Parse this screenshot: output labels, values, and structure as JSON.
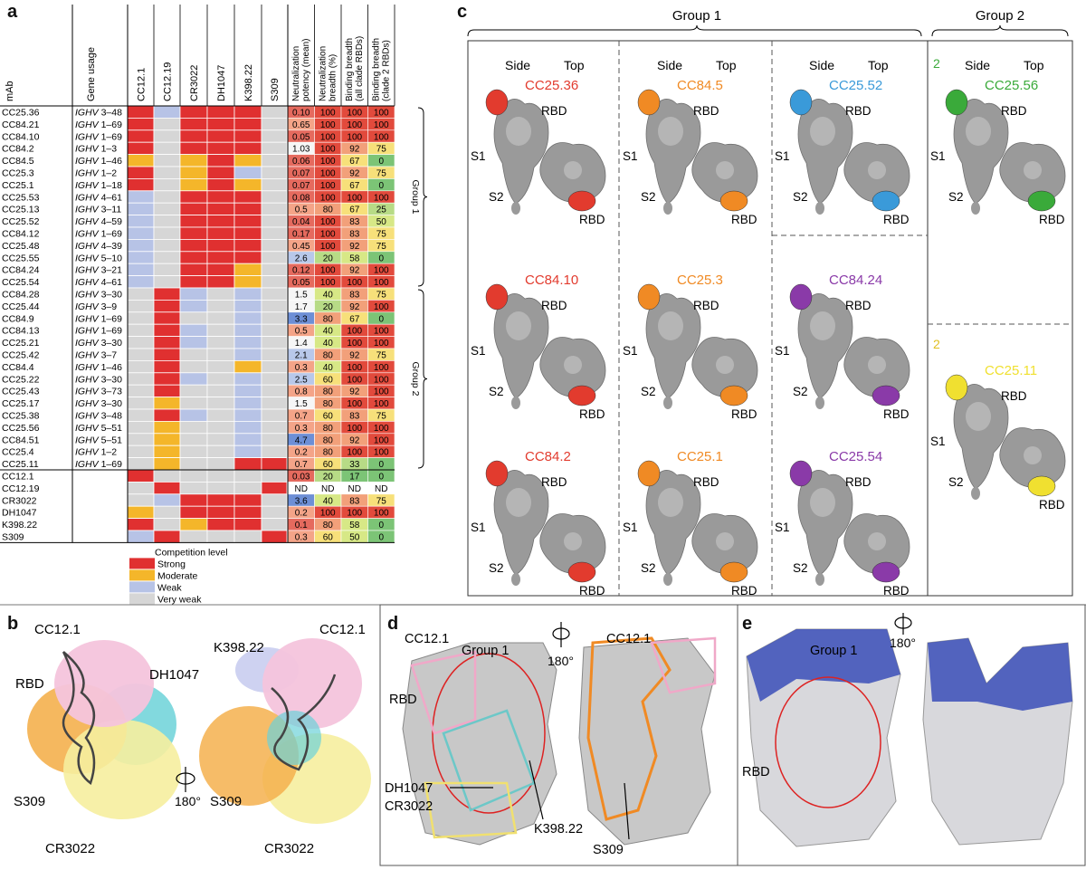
{
  "panels": {
    "a": "a",
    "b": "b",
    "c": "c",
    "d": "d",
    "e": "e"
  },
  "table": {
    "mab_header": "mAb",
    "gene_header": "Gene usage",
    "columns": [
      "CC12.1",
      "CC12.19",
      "CR3022",
      "DH1047",
      "K398.22",
      "S309"
    ],
    "value_headers": [
      "Neutralization potency (mean)",
      "Neutralization breadth (%)",
      "Binding breadth (all clade RBDs)",
      "Binding breadth (clade 2 RBDs)"
    ],
    "group1_label": "Group 1",
    "group2_label": "Group 2",
    "rows": [
      {
        "mab": "CC25.36",
        "gene_i": "IGHV",
        "gene_n": " 3–48",
        "comp": [
          "s",
          "w",
          "s",
          "s",
          "s",
          "v"
        ],
        "vals": [
          "0.10",
          "100",
          "100",
          "100"
        ]
      },
      {
        "mab": "CC84.21",
        "gene_i": "IGHV",
        "gene_n": " 1–69",
        "comp": [
          "s",
          "v",
          "s",
          "s",
          "s",
          "v"
        ],
        "vals": [
          "0.65",
          "100",
          "100",
          "100"
        ]
      },
      {
        "mab": "CC84.10",
        "gene_i": "IGHV",
        "gene_n": " 1–69",
        "comp": [
          "s",
          "v",
          "s",
          "s",
          "s",
          "v"
        ],
        "vals": [
          "0.05",
          "100",
          "100",
          "100"
        ]
      },
      {
        "mab": "CC84.2",
        "gene_i": "IGHV",
        "gene_n": " 1–3",
        "comp": [
          "s",
          "v",
          "s",
          "s",
          "s",
          "v"
        ],
        "vals": [
          "1.03",
          "100",
          "92",
          "75"
        ]
      },
      {
        "mab": "CC84.5",
        "gene_i": "IGHV",
        "gene_n": " 1–46",
        "comp": [
          "m",
          "v",
          "m",
          "s",
          "m",
          "v"
        ],
        "vals": [
          "0.06",
          "100",
          "67",
          "0"
        ]
      },
      {
        "mab": "CC25.3",
        "gene_i": "IGHV",
        "gene_n": " 1–2",
        "comp": [
          "s",
          "v",
          "m",
          "s",
          "w",
          "v"
        ],
        "vals": [
          "0.07",
          "100",
          "92",
          "75"
        ]
      },
      {
        "mab": "CC25.1",
        "gene_i": "IGHV",
        "gene_n": " 1–18",
        "comp": [
          "s",
          "v",
          "m",
          "s",
          "m",
          "v"
        ],
        "vals": [
          "0.07",
          "100",
          "67",
          "0"
        ]
      },
      {
        "mab": "CC25.53",
        "gene_i": "IGHV",
        "gene_n": " 4–61",
        "comp": [
          "w",
          "v",
          "s",
          "s",
          "s",
          "v"
        ],
        "vals": [
          "0.08",
          "100",
          "100",
          "100"
        ]
      },
      {
        "mab": "CC25.13",
        "gene_i": "IGHV",
        "gene_n": " 3–11",
        "comp": [
          "w",
          "v",
          "s",
          "s",
          "s",
          "v"
        ],
        "vals": [
          "0.5",
          "80",
          "67",
          "25"
        ]
      },
      {
        "mab": "CC25.52",
        "gene_i": "IGHV",
        "gene_n": " 4–59",
        "comp": [
          "w",
          "v",
          "s",
          "s",
          "s",
          "v"
        ],
        "vals": [
          "0.04",
          "100",
          "83",
          "50"
        ]
      },
      {
        "mab": "CC84.12",
        "gene_i": "IGHV",
        "gene_n": " 1–69",
        "comp": [
          "w",
          "v",
          "s",
          "s",
          "s",
          "v"
        ],
        "vals": [
          "0.17",
          "100",
          "83",
          "75"
        ]
      },
      {
        "mab": "CC25.48",
        "gene_i": "IGHV",
        "gene_n": " 4–39",
        "comp": [
          "w",
          "v",
          "s",
          "s",
          "s",
          "v"
        ],
        "vals": [
          "0.45",
          "100",
          "92",
          "75"
        ]
      },
      {
        "mab": "CC25.55",
        "gene_i": "IGHV",
        "gene_n": " 5–10",
        "comp": [
          "w",
          "v",
          "s",
          "s",
          "s",
          "v"
        ],
        "vals": [
          "2.6",
          "20",
          "58",
          "0"
        ]
      },
      {
        "mab": "CC84.24",
        "gene_i": "IGHV",
        "gene_n": " 3–21",
        "comp": [
          "w",
          "v",
          "s",
          "s",
          "m",
          "v"
        ],
        "vals": [
          "0.12",
          "100",
          "92",
          "100"
        ]
      },
      {
        "mab": "CC25.54",
        "gene_i": "IGHV",
        "gene_n": " 4–61",
        "comp": [
          "w",
          "v",
          "s",
          "s",
          "m",
          "v"
        ],
        "vals": [
          "0.05",
          "100",
          "100",
          "100"
        ]
      },
      {
        "mab": "CC84.28",
        "gene_i": "IGHV",
        "gene_n": " 3–30",
        "comp": [
          "v",
          "s",
          "w",
          "v",
          "w",
          "v"
        ],
        "vals": [
          "1.5",
          "40",
          "83",
          "75"
        ]
      },
      {
        "mab": "CC25.44",
        "gene_i": "IGHV",
        "gene_n": " 3–9",
        "comp": [
          "v",
          "s",
          "w",
          "v",
          "w",
          "v"
        ],
        "vals": [
          "1.7",
          "20",
          "92",
          "100"
        ]
      },
      {
        "mab": "CC84.9",
        "gene_i": "IGHV",
        "gene_n": " 1–69",
        "comp": [
          "v",
          "s",
          "v",
          "v",
          "w",
          "v"
        ],
        "vals": [
          "3.3",
          "80",
          "67",
          "0"
        ]
      },
      {
        "mab": "CC84.13",
        "gene_i": "IGHV",
        "gene_n": " 1–69",
        "comp": [
          "v",
          "s",
          "w",
          "v",
          "w",
          "v"
        ],
        "vals": [
          "0.5",
          "40",
          "100",
          "100"
        ]
      },
      {
        "mab": "CC25.21",
        "gene_i": "IGHV",
        "gene_n": " 3–30",
        "comp": [
          "v",
          "s",
          "w",
          "v",
          "w",
          "v"
        ],
        "vals": [
          "1.4",
          "40",
          "100",
          "100"
        ]
      },
      {
        "mab": "CC25.42",
        "gene_i": "IGHV",
        "gene_n": " 3–7",
        "comp": [
          "v",
          "s",
          "v",
          "v",
          "w",
          "v"
        ],
        "vals": [
          "2.1",
          "80",
          "92",
          "75"
        ]
      },
      {
        "mab": "CC84.4",
        "gene_i": "IGHV",
        "gene_n": " 1–46",
        "comp": [
          "v",
          "s",
          "v",
          "v",
          "m",
          "v"
        ],
        "vals": [
          "0.3",
          "40",
          "100",
          "100"
        ]
      },
      {
        "mab": "CC25.22",
        "gene_i": "IGHV",
        "gene_n": " 3–30",
        "comp": [
          "v",
          "s",
          "w",
          "v",
          "w",
          "v"
        ],
        "vals": [
          "2.5",
          "60",
          "100",
          "100"
        ]
      },
      {
        "mab": "CC25.43",
        "gene_i": "IGHV",
        "gene_n": " 3–73",
        "comp": [
          "v",
          "s",
          "v",
          "v",
          "w",
          "v"
        ],
        "vals": [
          "0.8",
          "80",
          "92",
          "100"
        ]
      },
      {
        "mab": "CC25.17",
        "gene_i": "IGHV",
        "gene_n": " 3–30",
        "comp": [
          "v",
          "m",
          "v",
          "v",
          "w",
          "v"
        ],
        "vals": [
          "1.5",
          "80",
          "100",
          "100"
        ]
      },
      {
        "mab": "CC25.38",
        "gene_i": "IGHV",
        "gene_n": " 3–48",
        "comp": [
          "v",
          "s",
          "w",
          "v",
          "w",
          "v"
        ],
        "vals": [
          "0.7",
          "60",
          "83",
          "75"
        ]
      },
      {
        "mab": "CC25.56",
        "gene_i": "IGHV",
        "gene_n": " 5–51",
        "comp": [
          "v",
          "m",
          "v",
          "v",
          "w",
          "v"
        ],
        "vals": [
          "0.3",
          "80",
          "100",
          "100"
        ]
      },
      {
        "mab": "CC84.51",
        "gene_i": "IGHV",
        "gene_n": " 5–51",
        "comp": [
          "v",
          "m",
          "v",
          "v",
          "w",
          "v"
        ],
        "vals": [
          "4.7",
          "80",
          "92",
          "100"
        ]
      },
      {
        "mab": "CC25.4",
        "gene_i": "IGHV",
        "gene_n": " 1–2",
        "comp": [
          "v",
          "m",
          "v",
          "v",
          "w",
          "v"
        ],
        "vals": [
          "0.2",
          "80",
          "100",
          "100"
        ]
      },
      {
        "mab": "CC25.11",
        "gene_i": "IGHV",
        "gene_n": " 1–69",
        "comp": [
          "v",
          "m",
          "v",
          "v",
          "s",
          "s"
        ],
        "vals": [
          "0.7",
          "60",
          "33",
          "0"
        ]
      },
      {
        "mab": "CC12.1",
        "gene_i": "",
        "gene_n": "",
        "comp": [
          "s",
          "v",
          "v",
          "v",
          "v",
          "v"
        ],
        "vals": [
          "0.03",
          "20",
          "17",
          "0"
        ]
      },
      {
        "mab": "CC12.19",
        "gene_i": "",
        "gene_n": "",
        "comp": [
          "v",
          "s",
          "v",
          "v",
          "v",
          "s"
        ],
        "vals": [
          "ND",
          "ND",
          "ND",
          "ND"
        ]
      },
      {
        "mab": "CR3022",
        "gene_i": "",
        "gene_n": "",
        "comp": [
          "v",
          "w",
          "s",
          "s",
          "s",
          "v"
        ],
        "vals": [
          "3.6",
          "40",
          "83",
          "75"
        ]
      },
      {
        "mab": "DH1047",
        "gene_i": "",
        "gene_n": "",
        "comp": [
          "m",
          "v",
          "s",
          "s",
          "s",
          "v"
        ],
        "vals": [
          "0.2",
          "100",
          "100",
          "100"
        ]
      },
      {
        "mab": "K398.22",
        "gene_i": "",
        "gene_n": "",
        "comp": [
          "s",
          "v",
          "m",
          "s",
          "s",
          "v"
        ],
        "vals": [
          "0.1",
          "80",
          "58",
          "0"
        ]
      },
      {
        "mab": "S309",
        "gene_i": "",
        "gene_n": "",
        "comp": [
          "w",
          "s",
          "v",
          "v",
          "v",
          "s"
        ],
        "vals": [
          "0.3",
          "60",
          "50",
          "0"
        ]
      }
    ],
    "legend": {
      "title": "Competition level",
      "items": [
        {
          "key": "s",
          "label": "Strong",
          "color": "#e03030"
        },
        {
          "key": "m",
          "label": "Moderate",
          "color": "#f4b62a"
        },
        {
          "key": "w",
          "label": "Weak",
          "color": "#b7c3e6"
        },
        {
          "key": "v",
          "label": "Very weak",
          "color": "#d6d6d6"
        }
      ]
    }
  },
  "panel_c": {
    "group1": "Group 1",
    "group2": "Group 2",
    "side": "Side",
    "top": "Top",
    "rbd": "RBD",
    "s1": "S1",
    "s2": "S2",
    "mabs": [
      {
        "name": "CC25.36",
        "color": "#e23b2e"
      },
      {
        "name": "CC84.5",
        "color": "#f08a24"
      },
      {
        "name": "CC25.52",
        "color": "#3a9ad9"
      },
      {
        "name": "CC84.10",
        "color": "#e23b2e"
      },
      {
        "name": "CC25.3",
        "color": "#f08a24"
      },
      {
        "name": "CC84.24",
        "color": "#8a3aa8"
      },
      {
        "name": "CC84.2",
        "color": "#e23b2e"
      },
      {
        "name": "CC25.1",
        "color": "#f08a24"
      },
      {
        "name": "CC25.54",
        "color": "#8a3aa8"
      },
      {
        "name": "CC25.56",
        "color": "#3aaa3a"
      },
      {
        "name": "CC25.11",
        "color": "#f0e030"
      }
    ],
    "num2": "2"
  },
  "panel_b": {
    "labels": [
      "CC12.1",
      "DH1047",
      "RBD",
      "S309",
      "CR3022",
      "K398.22",
      "CC12.1",
      "S309",
      "CR3022"
    ],
    "rot": "180°"
  },
  "panel_d": {
    "labels": [
      "CC12.1",
      "Group 1",
      "RBD",
      "DH1047",
      "CR3022",
      "K398.22",
      "CC12.1",
      "S309"
    ],
    "rot": "180°"
  },
  "panel_e": {
    "labels": [
      "Group 1",
      "RBD"
    ],
    "rot": "180°"
  }
}
